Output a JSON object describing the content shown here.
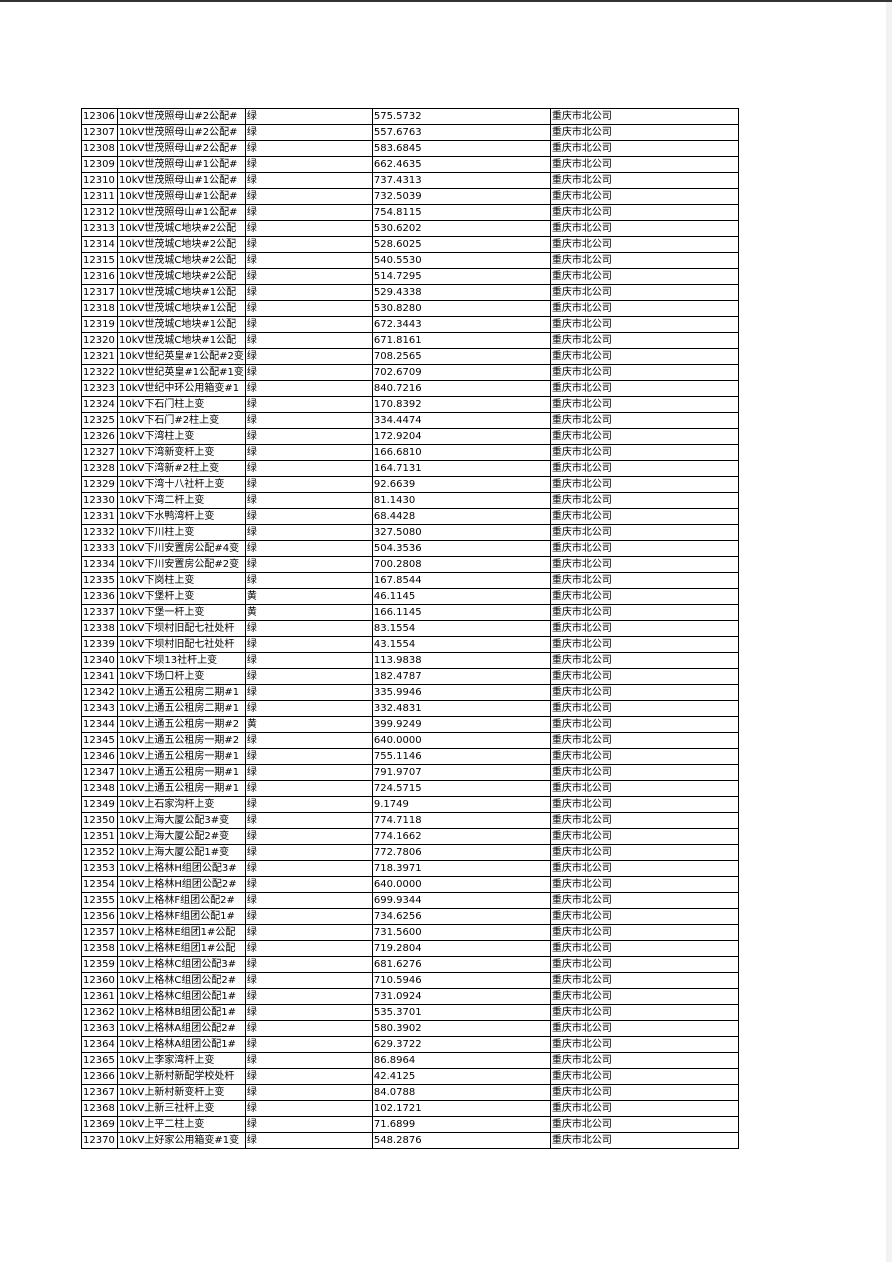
{
  "rows": [
    {
      "id": "12306",
      "name": "10kV世茂照母山#2公配#",
      "status": "绿",
      "value": "575.5732",
      "company": "重庆市北公司"
    },
    {
      "id": "12307",
      "name": "10kV世茂照母山#2公配#",
      "status": "绿",
      "value": "557.6763",
      "company": "重庆市北公司"
    },
    {
      "id": "12308",
      "name": "10kV世茂照母山#2公配#",
      "status": "绿",
      "value": "583.6845",
      "company": "重庆市北公司"
    },
    {
      "id": "12309",
      "name": "10kV世茂照母山#1公配#",
      "status": "绿",
      "value": "662.4635",
      "company": "重庆市北公司"
    },
    {
      "id": "12310",
      "name": "10kV世茂照母山#1公配#",
      "status": "绿",
      "value": "737.4313",
      "company": "重庆市北公司"
    },
    {
      "id": "12311",
      "name": "10kV世茂照母山#1公配#",
      "status": "绿",
      "value": "732.5039",
      "company": "重庆市北公司"
    },
    {
      "id": "12312",
      "name": "10kV世茂照母山#1公配#",
      "status": "绿",
      "value": "754.8115",
      "company": "重庆市北公司"
    },
    {
      "id": "12313",
      "name": "10kV世茂城C地块#2公配",
      "status": "绿",
      "value": "530.6202",
      "company": "重庆市北公司"
    },
    {
      "id": "12314",
      "name": "10kV世茂城C地块#2公配",
      "status": "绿",
      "value": "528.6025",
      "company": "重庆市北公司"
    },
    {
      "id": "12315",
      "name": "10kV世茂城C地块#2公配",
      "status": "绿",
      "value": "540.5530",
      "company": "重庆市北公司"
    },
    {
      "id": "12316",
      "name": "10kV世茂城C地块#2公配",
      "status": "绿",
      "value": "514.7295",
      "company": "重庆市北公司"
    },
    {
      "id": "12317",
      "name": "10kV世茂城C地块#1公配",
      "status": "绿",
      "value": "529.4338",
      "company": "重庆市北公司"
    },
    {
      "id": "12318",
      "name": "10kV世茂城C地块#1公配",
      "status": "绿",
      "value": "530.8280",
      "company": "重庆市北公司"
    },
    {
      "id": "12319",
      "name": "10kV世茂城C地块#1公配",
      "status": "绿",
      "value": "672.3443",
      "company": "重庆市北公司"
    },
    {
      "id": "12320",
      "name": "10kV世茂城C地块#1公配",
      "status": "绿",
      "value": "671.8161",
      "company": "重庆市北公司"
    },
    {
      "id": "12321",
      "name": "10kV世纪英皇#1公配#2变",
      "status": "绿",
      "value": "708.2565",
      "company": "重庆市北公司"
    },
    {
      "id": "12322",
      "name": "10kV世纪英皇#1公配#1变",
      "status": "绿",
      "value": "702.6709",
      "company": "重庆市北公司"
    },
    {
      "id": "12323",
      "name": "10kV世纪中环公用箱变#1",
      "status": "绿",
      "value": "840.7216",
      "company": "重庆市北公司"
    },
    {
      "id": "12324",
      "name": "10kV下石门柱上变",
      "status": "绿",
      "value": "170.8392",
      "company": "重庆市北公司"
    },
    {
      "id": "12325",
      "name": "10kV下石门#2柱上变",
      "status": "绿",
      "value": "334.4474",
      "company": "重庆市北公司"
    },
    {
      "id": "12326",
      "name": "10kV下湾柱上变",
      "status": "绿",
      "value": "172.9204",
      "company": "重庆市北公司"
    },
    {
      "id": "12327",
      "name": "10kV下湾新变杆上变",
      "status": "绿",
      "value": "166.6810",
      "company": "重庆市北公司"
    },
    {
      "id": "12328",
      "name": "10kV下湾新#2柱上变",
      "status": "绿",
      "value": "164.7131",
      "company": "重庆市北公司"
    },
    {
      "id": "12329",
      "name": "10kV下湾十八社杆上变",
      "status": "绿",
      "value": "92.6639",
      "company": "重庆市北公司"
    },
    {
      "id": "12330",
      "name": "10kV下湾二杆上变",
      "status": "绿",
      "value": "81.1430",
      "company": "重庆市北公司"
    },
    {
      "id": "12331",
      "name": "10kV下水鸭湾杆上变",
      "status": "绿",
      "value": "68.4428",
      "company": "重庆市北公司"
    },
    {
      "id": "12332",
      "name": "10kV下川柱上变",
      "status": "绿",
      "value": "327.5080",
      "company": "重庆市北公司"
    },
    {
      "id": "12333",
      "name": "10kV下川安置房公配#4变",
      "status": "绿",
      "value": "504.3536",
      "company": "重庆市北公司"
    },
    {
      "id": "12334",
      "name": "10kV下川安置房公配#2变",
      "status": "绿",
      "value": "700.2808",
      "company": "重庆市北公司"
    },
    {
      "id": "12335",
      "name": "10kV下岗柱上变",
      "status": "绿",
      "value": "167.8544",
      "company": "重庆市北公司"
    },
    {
      "id": "12336",
      "name": "10kV下堡杆上变",
      "status": "黄",
      "value": "46.1145",
      "company": "重庆市北公司"
    },
    {
      "id": "12337",
      "name": "10kV下堡一杆上变",
      "status": "黄",
      "value": "166.1145",
      "company": "重庆市北公司"
    },
    {
      "id": "12338",
      "name": "10kV下坝村旧配七社处杆",
      "status": "绿",
      "value": "83.1554",
      "company": "重庆市北公司"
    },
    {
      "id": "12339",
      "name": "10kV下坝村旧配七社处杆",
      "status": "绿",
      "value": "43.1554",
      "company": "重庆市北公司"
    },
    {
      "id": "12340",
      "name": "10kV下坝13社杆上变",
      "status": "绿",
      "value": "113.9838",
      "company": "重庆市北公司"
    },
    {
      "id": "12341",
      "name": "10kV下场口杆上变",
      "status": "绿",
      "value": "182.4787",
      "company": "重庆市北公司"
    },
    {
      "id": "12342",
      "name": "10kV上通五公租房二期#1",
      "status": "绿",
      "value": "335.9946",
      "company": "重庆市北公司"
    },
    {
      "id": "12343",
      "name": "10kV上通五公租房二期#1",
      "status": "绿",
      "value": "332.4831",
      "company": "重庆市北公司"
    },
    {
      "id": "12344",
      "name": "10kV上通五公租房一期#2",
      "status": "黄",
      "value": "399.9249",
      "company": "重庆市北公司"
    },
    {
      "id": "12345",
      "name": "10kV上通五公租房一期#2",
      "status": "绿",
      "value": "640.0000",
      "company": "重庆市北公司"
    },
    {
      "id": "12346",
      "name": "10kV上通五公租房一期#1",
      "status": "绿",
      "value": "755.1146",
      "company": "重庆市北公司"
    },
    {
      "id": "12347",
      "name": "10kV上通五公租房一期#1",
      "status": "绿",
      "value": "791.9707",
      "company": "重庆市北公司"
    },
    {
      "id": "12348",
      "name": "10kV上通五公租房一期#1",
      "status": "绿",
      "value": "724.5715",
      "company": "重庆市北公司"
    },
    {
      "id": "12349",
      "name": "10kV上石家沟杆上变",
      "status": "绿",
      "value": "9.1749",
      "company": "重庆市北公司"
    },
    {
      "id": "12350",
      "name": "10kV上海大厦公配3#变",
      "status": "绿",
      "value": "774.7118",
      "company": "重庆市北公司"
    },
    {
      "id": "12351",
      "name": "10kV上海大厦公配2#变",
      "status": "绿",
      "value": "774.1662",
      "company": "重庆市北公司"
    },
    {
      "id": "12352",
      "name": "10kV上海大厦公配1#变",
      "status": "绿",
      "value": "772.7806",
      "company": "重庆市北公司"
    },
    {
      "id": "12353",
      "name": "10kV上格林H组团公配3#",
      "status": "绿",
      "value": "718.3971",
      "company": "重庆市北公司"
    },
    {
      "id": "12354",
      "name": "10kV上格林H组团公配2#",
      "status": "绿",
      "value": "640.0000",
      "company": "重庆市北公司"
    },
    {
      "id": "12355",
      "name": "10kV上格林F组团公配2#",
      "status": "绿",
      "value": "699.9344",
      "company": "重庆市北公司"
    },
    {
      "id": "12356",
      "name": "10kV上格林F组团公配1#",
      "status": "绿",
      "value": "734.6256",
      "company": "重庆市北公司"
    },
    {
      "id": "12357",
      "name": "10kV上格林E组团1#公配",
      "status": "绿",
      "value": "731.5600",
      "company": "重庆市北公司"
    },
    {
      "id": "12358",
      "name": "10kV上格林E组团1#公配",
      "status": "绿",
      "value": "719.2804",
      "company": "重庆市北公司"
    },
    {
      "id": "12359",
      "name": "10kV上格林C组团公配3#",
      "status": "绿",
      "value": "681.6276",
      "company": "重庆市北公司"
    },
    {
      "id": "12360",
      "name": "10kV上格林C组团公配2#",
      "status": "绿",
      "value": "710.5946",
      "company": "重庆市北公司"
    },
    {
      "id": "12361",
      "name": "10kV上格林C组团公配1#",
      "status": "绿",
      "value": "731.0924",
      "company": "重庆市北公司"
    },
    {
      "id": "12362",
      "name": "10kV上格林B组团公配1#",
      "status": "绿",
      "value": "535.3701",
      "company": "重庆市北公司"
    },
    {
      "id": "12363",
      "name": "10kV上格林A组团公配2#",
      "status": "绿",
      "value": "580.3902",
      "company": "重庆市北公司"
    },
    {
      "id": "12364",
      "name": "10kV上格林A组团公配1#",
      "status": "绿",
      "value": "629.3722",
      "company": "重庆市北公司"
    },
    {
      "id": "12365",
      "name": "10kV上李家湾杆上变",
      "status": "绿",
      "value": "86.8964",
      "company": "重庆市北公司"
    },
    {
      "id": "12366",
      "name": "10kV上新村新配学校处杆",
      "status": "绿",
      "value": "42.4125",
      "company": "重庆市北公司"
    },
    {
      "id": "12367",
      "name": "10kV上新村新变杆上变",
      "status": "绿",
      "value": "84.0788",
      "company": "重庆市北公司"
    },
    {
      "id": "12368",
      "name": "10kV上新三社杆上变",
      "status": "绿",
      "value": "102.1721",
      "company": "重庆市北公司"
    },
    {
      "id": "12369",
      "name": "10kV上平二柱上变",
      "status": "绿",
      "value": "71.6899",
      "company": "重庆市北公司"
    },
    {
      "id": "12370",
      "name": "10kV上好家公用箱变#1变",
      "status": "绿",
      "value": "548.2876",
      "company": "重庆市北公司"
    }
  ]
}
